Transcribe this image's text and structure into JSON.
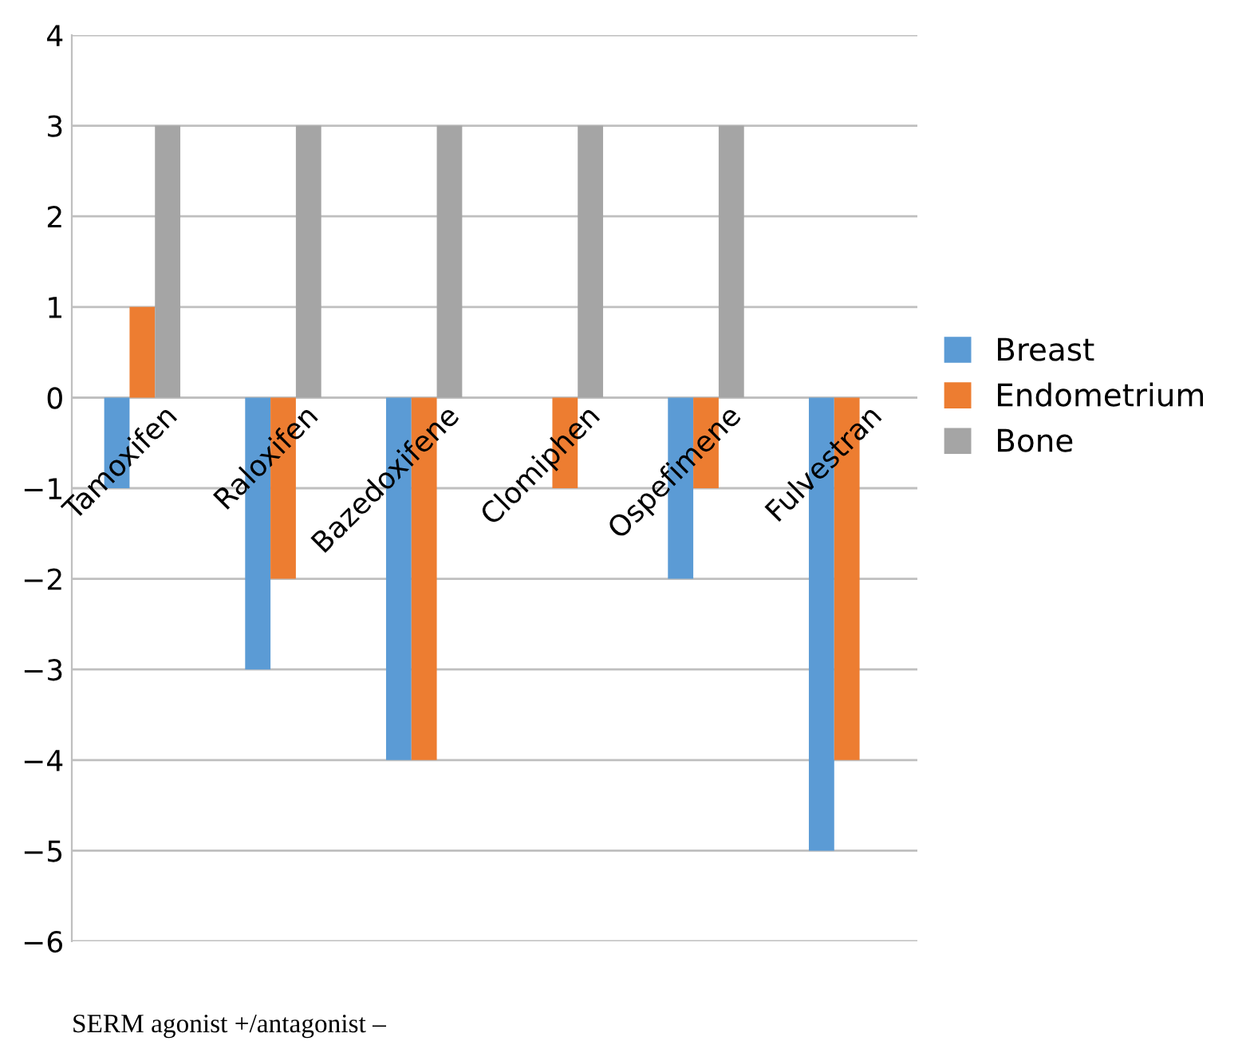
{
  "chart_data": {
    "type": "bar",
    "categories": [
      "Tamoxifen",
      "Raloxifen",
      "Bazedoxifene",
      "Clomiphen",
      "Ospefimene",
      "Fulvestran"
    ],
    "series": [
      {
        "name": "Breast",
        "color": "#5b9bd5",
        "values": [
          -1,
          -3,
          -4,
          0,
          -2,
          -5
        ]
      },
      {
        "name": "Endometrium",
        "color": "#ed7d31",
        "values": [
          1,
          -2,
          -4,
          -1,
          -1,
          -4
        ]
      },
      {
        "name": "Bone",
        "color": "#a5a5a5",
        "values": [
          3,
          3,
          3,
          3,
          3,
          0
        ]
      }
    ],
    "ylim": [
      -6,
      4
    ],
    "yticks": [
      {
        "value": -6,
        "label": "−6"
      },
      {
        "value": -5,
        "label": "−5"
      },
      {
        "value": -4,
        "label": "−4"
      },
      {
        "value": -3,
        "label": "−3"
      },
      {
        "value": -2,
        "label": "−2"
      },
      {
        "value": -1,
        "label": "−1"
      },
      0,
      1,
      2,
      3,
      4
    ],
    "grid": "y",
    "legend": "right",
    "annotations": [
      "SERM agonist +/antagonist –"
    ]
  }
}
